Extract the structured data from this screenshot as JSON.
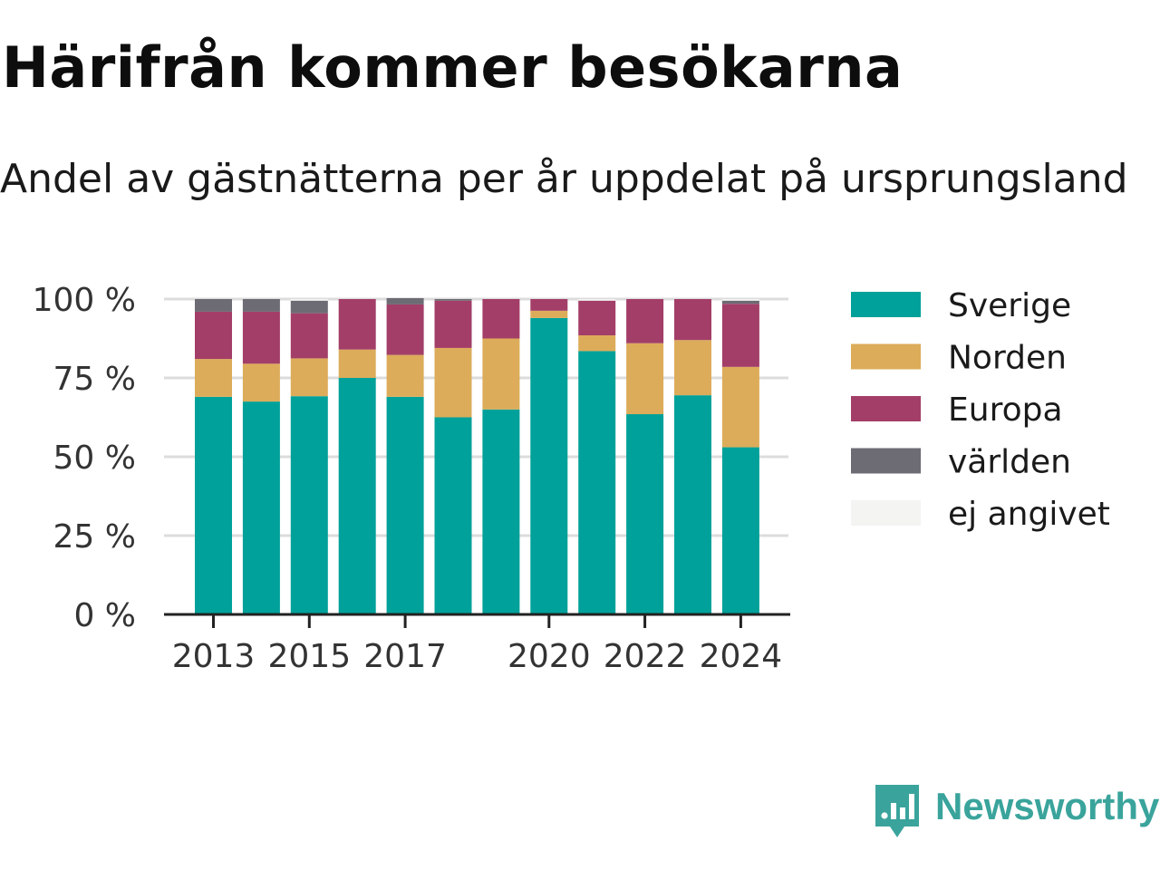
{
  "header": {
    "title": "Härifrån kommer besökarna",
    "subtitle": "Andel av gästnätterna per år uppdelat på ursprungsland"
  },
  "logo": {
    "text": "Newsworthy",
    "icon": "newsworthy-chart-bubble-icon"
  },
  "colors": {
    "sverige": "#00a19a",
    "norden": "#dcac5a",
    "europa": "#a33e68",
    "varlden": "#6d6b73",
    "ej_angivet": "#f4f4f2",
    "grid": "#dcdcdc",
    "axis": "#222222",
    "logo": "#3aa49c"
  },
  "chart_data": {
    "type": "bar",
    "stacked": true,
    "categories": [
      "2013",
      "2014",
      "2015",
      "2016",
      "2017",
      "2018",
      "2019",
      "2020",
      "2021",
      "2022",
      "2023",
      "2024"
    ],
    "x_tick_labels": [
      "2013",
      "",
      "2015",
      "",
      "2017",
      "",
      "",
      "2020",
      "",
      "2022",
      "",
      "2024"
    ],
    "y_ticks": [
      0,
      25,
      50,
      75,
      100
    ],
    "y_tick_labels": [
      "0 %",
      "25 %",
      "50 %",
      "75 %",
      "100 %"
    ],
    "ylim": [
      0,
      100
    ],
    "grid": true,
    "legend_position": "right",
    "series": [
      {
        "name": "Sverige",
        "color_key": "sverige",
        "values": [
          69,
          67.5,
          69.2,
          75,
          69,
          62.5,
          65,
          94,
          83.5,
          63.5,
          69.5,
          53
        ]
      },
      {
        "name": "Norden",
        "color_key": "norden",
        "values": [
          12,
          12,
          12,
          9,
          13.3,
          22,
          22.5,
          2.3,
          5,
          22.5,
          17.5,
          25.5
        ]
      },
      {
        "name": "Europa",
        "color_key": "europa",
        "values": [
          15,
          16.5,
          14.3,
          16,
          16,
          15,
          12.5,
          3.7,
          11,
          14,
          13,
          20
        ]
      },
      {
        "name": "världen",
        "color_key": "varlden",
        "values": [
          4,
          4,
          4,
          0,
          2,
          0.5,
          0,
          0,
          0,
          0,
          0,
          1
        ]
      },
      {
        "name": "ej angivet",
        "color_key": "ej_angivet",
        "values": [
          0,
          0,
          0.5,
          0,
          0,
          0,
          0,
          0,
          0.5,
          0,
          0,
          0.5
        ]
      }
    ]
  }
}
